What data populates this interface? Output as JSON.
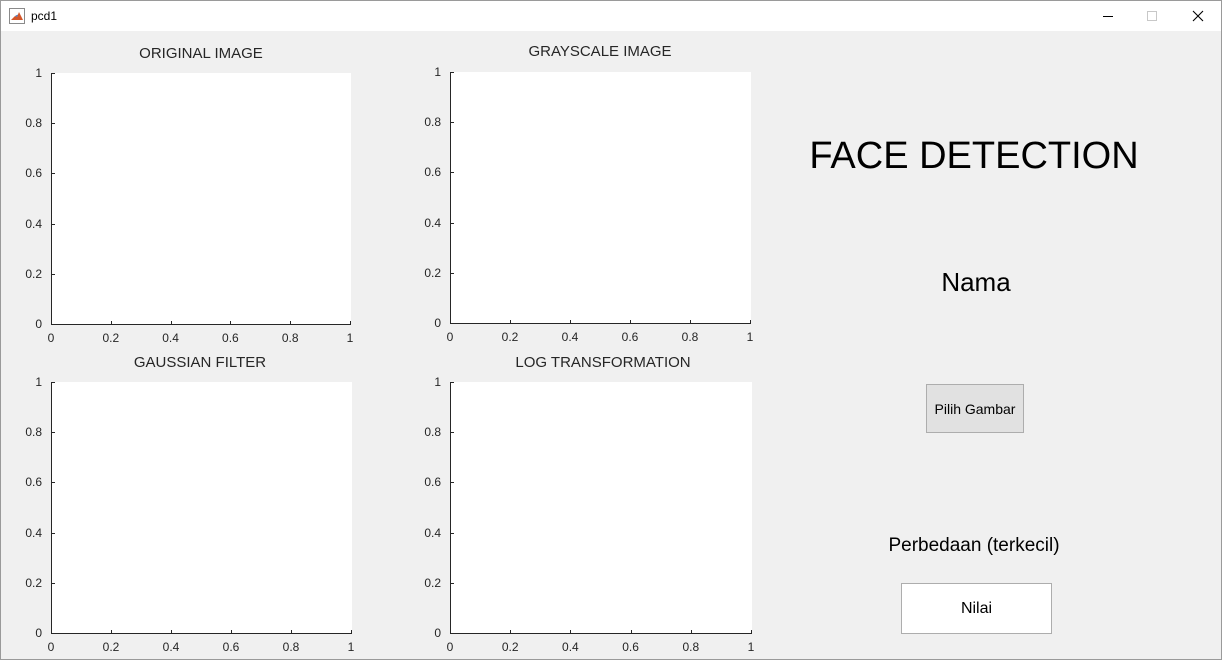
{
  "window": {
    "title": "pcd1",
    "minimize_icon": "minimize-icon",
    "maximize_icon": "maximize-icon",
    "close_icon": "close-icon"
  },
  "axes": [
    {
      "title": "ORIGINAL IMAGE",
      "xticks": [
        "0",
        "0.2",
        "0.4",
        "0.6",
        "0.8",
        "1"
      ],
      "yticks": [
        "0",
        "0.2",
        "0.4",
        "0.6",
        "0.8",
        "1"
      ]
    },
    {
      "title": "GRAYSCALE IMAGE",
      "xticks": [
        "0",
        "0.2",
        "0.4",
        "0.6",
        "0.8",
        "1"
      ],
      "yticks": [
        "0",
        "0.2",
        "0.4",
        "0.6",
        "0.8",
        "1"
      ]
    },
    {
      "title": "GAUSSIAN FILTER",
      "xticks": [
        "0",
        "0.2",
        "0.4",
        "0.6",
        "0.8",
        "1"
      ],
      "yticks": [
        "0",
        "0.2",
        "0.4",
        "0.6",
        "0.8",
        "1"
      ]
    },
    {
      "title": "LOG TRANSFORMATION",
      "xticks": [
        "0",
        "0.2",
        "0.4",
        "0.6",
        "0.8",
        "1"
      ],
      "yticks": [
        "0",
        "0.2",
        "0.4",
        "0.6",
        "0.8",
        "1"
      ]
    }
  ],
  "panel": {
    "heading": "FACE DETECTION",
    "name_label": "Nama",
    "choose_button": "Pilih Gambar",
    "difference_label": "Perbedaan (terkecil)",
    "value_box": "Nilai"
  }
}
